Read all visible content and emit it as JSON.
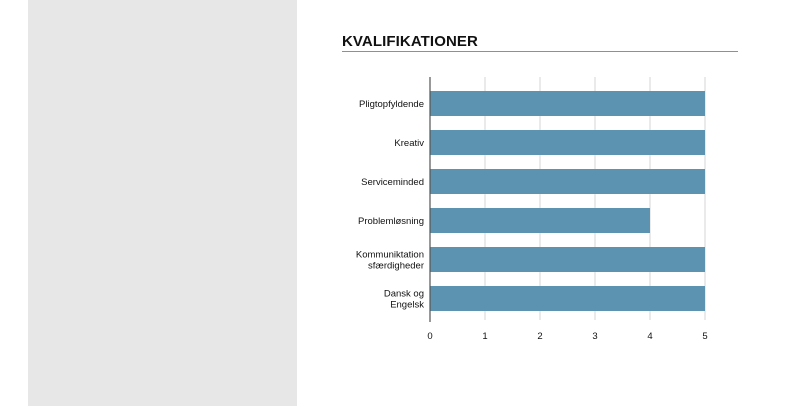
{
  "section": {
    "title": "KVALIFIKATIONER"
  },
  "colors": {
    "bar": "#5b93b0",
    "grid": "#d4d4d4",
    "axis": "#555555",
    "sidebar": "#e8e7e7"
  },
  "chart_data": {
    "type": "bar",
    "orientation": "horizontal",
    "categories": [
      [
        "Pligtopfyldende"
      ],
      [
        "Kreativ"
      ],
      [
        "Serviceminded"
      ],
      [
        "Problemløsning"
      ],
      [
        "Kommuniktation",
        "sfærdigheder"
      ],
      [
        "Dansk og",
        "Engelsk"
      ]
    ],
    "values": [
      5,
      5,
      5,
      4,
      5,
      5
    ],
    "xlim": [
      0,
      5
    ],
    "xticks": [
      0,
      1,
      2,
      3,
      4,
      5
    ],
    "grid": true,
    "legend": "none"
  }
}
